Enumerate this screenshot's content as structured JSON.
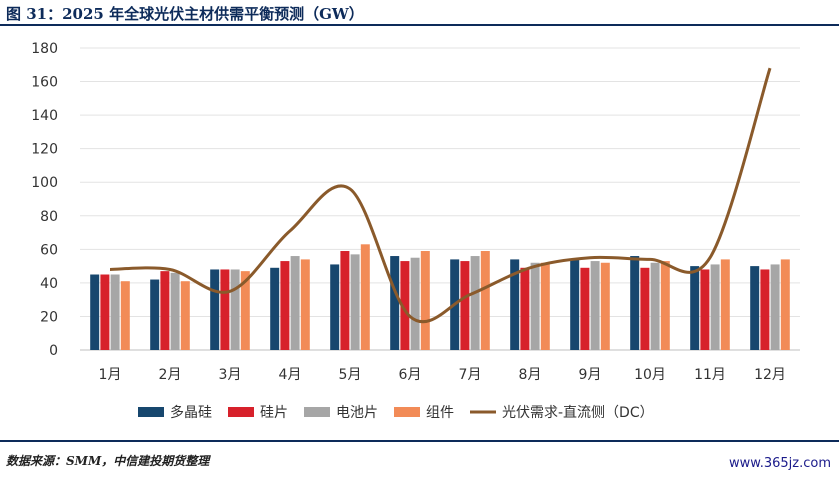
{
  "header": {
    "title": "图 31：2025 年全球光伏主材供需平衡预测（GW）"
  },
  "footer": {
    "source": "数据来源：SMM，中信建投期货整理",
    "watermark": "www.365jz.com"
  },
  "colors": {
    "polysilicon": "#17476e",
    "wafer": "#d7212b",
    "cell": "#a6a6a6",
    "module": "#f28b57",
    "demand": "#8a5a2b"
  },
  "chart_data": {
    "type": "bar",
    "title": "",
    "xlabel": "",
    "ylabel": "",
    "ylim": [
      0,
      180
    ],
    "yticks": [
      0,
      20,
      40,
      60,
      80,
      100,
      120,
      140,
      160,
      180
    ],
    "grid": true,
    "legend_position": "bottom",
    "categories": [
      "1月",
      "2月",
      "3月",
      "4月",
      "5月",
      "6月",
      "7月",
      "8月",
      "9月",
      "10月",
      "11月",
      "12月"
    ],
    "series": [
      {
        "name": "多晶硅",
        "type": "bar",
        "color": "#17476e",
        "values": [
          45,
          42,
          48,
          49,
          51,
          56,
          54,
          54,
          54,
          56,
          50,
          50
        ]
      },
      {
        "name": "硅片",
        "type": "bar",
        "color": "#d7212b",
        "values": [
          45,
          47,
          48,
          53,
          59,
          53,
          53,
          49,
          49,
          49,
          48,
          48
        ]
      },
      {
        "name": "电池片",
        "type": "bar",
        "color": "#a6a6a6",
        "values": [
          45,
          46,
          48,
          56,
          57,
          55,
          56,
          52,
          53,
          52,
          51,
          51
        ]
      },
      {
        "name": "组件",
        "type": "bar",
        "color": "#f28b57",
        "values": [
          41,
          41,
          47,
          54,
          63,
          59,
          59,
          52,
          52,
          53,
          54,
          54
        ]
      },
      {
        "name": "光伏需求-直流侧（DC）",
        "type": "line",
        "color": "#8a5a2b",
        "values": [
          48,
          48,
          35,
          71,
          96,
          20,
          33,
          49,
          55,
          54,
          55,
          168
        ]
      }
    ]
  }
}
